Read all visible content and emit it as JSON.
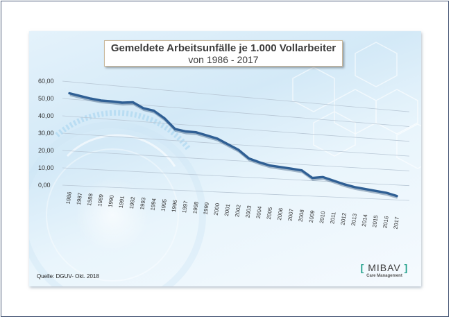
{
  "chart_data": {
    "type": "line",
    "title": "Gemeldete Arbeitsunfälle je 1.000 Vollarbeiter",
    "subtitle": "von 1986 - 2017",
    "xlabel": "",
    "ylabel": "",
    "ylim": [
      0,
      60
    ],
    "y_ticks": [
      "0,00",
      "10,00",
      "20,00",
      "30,00",
      "40,00",
      "50,00",
      "60,00"
    ],
    "grid": true,
    "legend": "none",
    "categories": [
      "1986",
      "1987",
      "1988",
      "1989",
      "1990",
      "1991",
      "1992",
      "1993",
      "1994",
      "1995",
      "1996",
      "1997",
      "1998",
      "1999",
      "2000",
      "2001",
      "2002",
      "2003",
      "2004",
      "2005",
      "2006",
      "2007",
      "2008",
      "2009",
      "2010",
      "2011",
      "2012",
      "2013",
      "2014",
      "2015",
      "2016",
      "2017"
    ],
    "series": [
      {
        "name": "Gemeldete Arbeitsunfälle je 1.000 Vollarbeiter",
        "color": "#2f5f94",
        "values": [
          53.0,
          52.0,
          51.0,
          50.4,
          50.4,
          50.2,
          51.0,
          48.0,
          47.0,
          43.0,
          37.0,
          36.0,
          36.0,
          34.5,
          33.0,
          30.0,
          27.0,
          22.0,
          20.0,
          18.4,
          17.8,
          17.2,
          16.5,
          12.0,
          13.0,
          11.0,
          9.0,
          7.5,
          6.6,
          5.7,
          4.8,
          3.0
        ]
      }
    ]
  },
  "footer": {
    "source": "Quelle: DGUV- Okt. 2018"
  },
  "logo": {
    "bracket_open": "[",
    "name": "MIBAV",
    "bracket_close": "]",
    "tagline": "Care Management",
    "accent": "#1fa08a"
  }
}
